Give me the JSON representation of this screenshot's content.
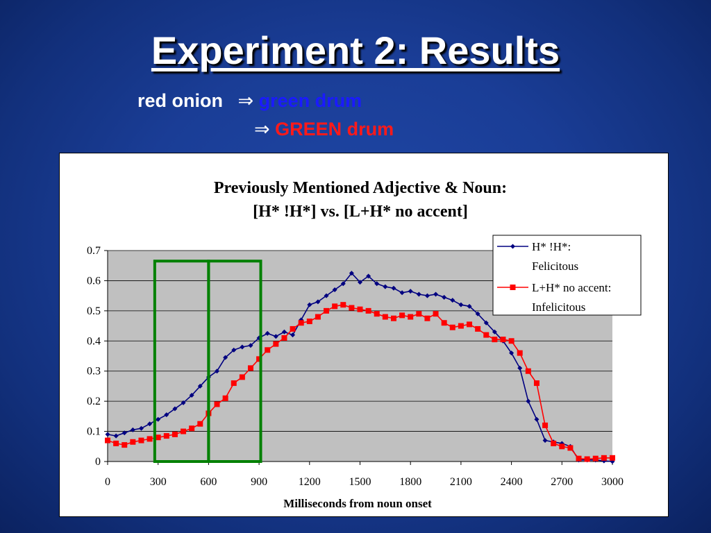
{
  "slide": {
    "title": "Experiment 2: Results",
    "line1_left": "red onion",
    "line1_arrow": "⇒",
    "line1_right": "green drum",
    "line2_arrow": "⇒",
    "line2_right": "GREEN drum",
    "colors": {
      "line1_left": "#ffffff",
      "line1_right": "#1a1aff",
      "line2_right": "#ff1a1a",
      "arrow": "#ffffff"
    }
  },
  "chart_data": {
    "type": "line",
    "title_line1": "Previously Mentioned Adjective & Noun:",
    "title_line2": "[H* !H*] vs. [L+H* no accent]",
    "xlabel": "Milliseconds from noun onset",
    "ylabel": "",
    "xlim": [
      0,
      3000
    ],
    "ylim": [
      0,
      0.7
    ],
    "xticks": [
      0,
      300,
      600,
      900,
      1200,
      1500,
      1800,
      2100,
      2400,
      2700,
      3000
    ],
    "yticks": [
      0,
      0.1,
      0.2,
      0.3,
      0.4,
      0.5,
      0.6,
      0.7
    ],
    "ytick_labels": [
      "0",
      "0.1",
      "0.2",
      "0.3",
      "0.4",
      "0.5",
      "0.6",
      "0.7"
    ],
    "plot_background": "#c0c0c0",
    "grid": "horizontal",
    "legend_position": "top-right",
    "series": [
      {
        "name_line1": "H* !H*:",
        "name_line2": "Felicitous",
        "color": "#000080",
        "marker": "diamond",
        "x": [
          0,
          50,
          100,
          150,
          200,
          250,
          300,
          350,
          400,
          450,
          500,
          550,
          600,
          650,
          700,
          750,
          800,
          850,
          900,
          950,
          1000,
          1050,
          1100,
          1150,
          1200,
          1250,
          1300,
          1350,
          1400,
          1450,
          1500,
          1550,
          1600,
          1650,
          1700,
          1750,
          1800,
          1850,
          1900,
          1950,
          2000,
          2050,
          2100,
          2150,
          2200,
          2250,
          2300,
          2350,
          2400,
          2450,
          2500,
          2550,
          2600,
          2650,
          2700,
          2750,
          2800,
          2850,
          2900,
          2950,
          3000
        ],
        "y": [
          0.09,
          0.085,
          0.095,
          0.105,
          0.11,
          0.125,
          0.14,
          0.155,
          0.175,
          0.195,
          0.22,
          0.25,
          0.28,
          0.3,
          0.345,
          0.37,
          0.38,
          0.385,
          0.41,
          0.425,
          0.415,
          0.43,
          0.42,
          0.47,
          0.52,
          0.53,
          0.55,
          0.57,
          0.59,
          0.625,
          0.595,
          0.615,
          0.59,
          0.58,
          0.575,
          0.56,
          0.565,
          0.555,
          0.55,
          0.555,
          0.545,
          0.535,
          0.52,
          0.515,
          0.49,
          0.46,
          0.43,
          0.4,
          0.36,
          0.31,
          0.2,
          0.14,
          0.07,
          0.065,
          0.06,
          0.05,
          0.005,
          0.005,
          0.005,
          0.002,
          0.0
        ]
      },
      {
        "name_line1": "L+H* no accent:",
        "name_line2": "Infelicitous",
        "color": "#ff0000",
        "marker": "square",
        "x": [
          0,
          50,
          100,
          150,
          200,
          250,
          300,
          350,
          400,
          450,
          500,
          550,
          600,
          650,
          700,
          750,
          800,
          850,
          900,
          950,
          1000,
          1050,
          1100,
          1150,
          1200,
          1250,
          1300,
          1350,
          1400,
          1450,
          1500,
          1550,
          1600,
          1650,
          1700,
          1750,
          1800,
          1850,
          1900,
          1950,
          2000,
          2050,
          2100,
          2150,
          2200,
          2250,
          2300,
          2350,
          2400,
          2450,
          2500,
          2550,
          2600,
          2650,
          2700,
          2750,
          2800,
          2850,
          2900,
          2950,
          3000
        ],
        "y": [
          0.07,
          0.06,
          0.055,
          0.065,
          0.07,
          0.075,
          0.08,
          0.085,
          0.09,
          0.1,
          0.11,
          0.125,
          0.16,
          0.19,
          0.21,
          0.26,
          0.28,
          0.31,
          0.34,
          0.37,
          0.39,
          0.41,
          0.44,
          0.46,
          0.465,
          0.48,
          0.5,
          0.515,
          0.52,
          0.51,
          0.505,
          0.5,
          0.49,
          0.48,
          0.475,
          0.485,
          0.48,
          0.49,
          0.475,
          0.49,
          0.46,
          0.445,
          0.45,
          0.455,
          0.44,
          0.42,
          0.405,
          0.405,
          0.4,
          0.36,
          0.3,
          0.26,
          0.12,
          0.06,
          0.05,
          0.045,
          0.01,
          0.008,
          0.01,
          0.012,
          0.012
        ]
      }
    ],
    "highlight_boxes": [
      {
        "x_start": 280,
        "x_end": 600,
        "y_top": 0.665
      },
      {
        "x_start": 600,
        "x_end": 910,
        "y_top": 0.665
      }
    ],
    "highlight_color": "#008000"
  }
}
